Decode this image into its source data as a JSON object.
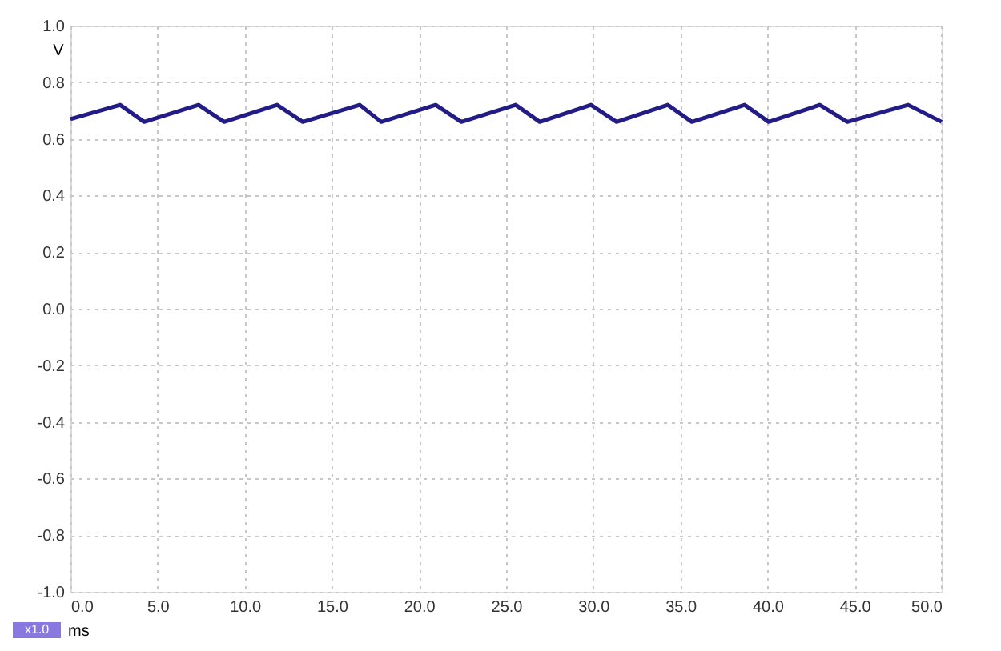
{
  "chart_data": {
    "type": "line",
    "xlabel": "ms",
    "ylabel": "V",
    "annotations": [
      "x1.0"
    ],
    "x": [
      0,
      2.85,
      4.23,
      7.35,
      8.82,
      11.86,
      13.33,
      16.6,
      17.83,
      20.96,
      22.43,
      25.55,
      26.93,
      29.87,
      31.34,
      34.28,
      35.66,
      38.69,
      40.07,
      43.0,
      44.58,
      48.07,
      50
    ],
    "series": [
      {
        "color": "#231c86",
        "values": [
          0.67,
          0.72,
          0.66,
          0.72,
          0.66,
          0.72,
          0.66,
          0.72,
          0.66,
          0.72,
          0.66,
          0.72,
          0.66,
          0.72,
          0.66,
          0.72,
          0.66,
          0.72,
          0.66,
          0.72,
          0.66,
          0.72,
          0.66
        ]
      }
    ],
    "xlim": [
      0,
      50
    ],
    "ylim": [
      -1,
      1
    ],
    "xticks": [
      {
        "value": 0,
        "label": "0.0"
      },
      {
        "value": 5,
        "label": "5.0"
      },
      {
        "value": 10,
        "label": "10.0"
      },
      {
        "value": 15,
        "label": "15.0"
      },
      {
        "value": 20,
        "label": "20.0"
      },
      {
        "value": 25,
        "label": "25.0"
      },
      {
        "value": 30,
        "label": "30.0"
      },
      {
        "value": 35,
        "label": "35.0"
      },
      {
        "value": 40,
        "label": "40.0"
      },
      {
        "value": 45,
        "label": "45.0"
      },
      {
        "value": 50,
        "label": "50.0"
      }
    ],
    "yticks": [
      {
        "value": -1,
        "label": "-1.0"
      },
      {
        "value": -0.8,
        "label": "-0.8"
      },
      {
        "value": -0.6,
        "label": "-0.6"
      },
      {
        "value": -0.4,
        "label": "-0.4"
      },
      {
        "value": -0.2,
        "label": "-0.2"
      },
      {
        "value": 0,
        "label": "0.0"
      },
      {
        "value": 0.2,
        "label": "0.2"
      },
      {
        "value": 0.4,
        "label": "0.4"
      },
      {
        "value": 0.6,
        "label": "0.6"
      },
      {
        "value": 0.8,
        "label": "0.8"
      },
      {
        "value": 1,
        "label": "1.0"
      }
    ],
    "grid": true,
    "line_style": "solid",
    "marker": "none"
  }
}
